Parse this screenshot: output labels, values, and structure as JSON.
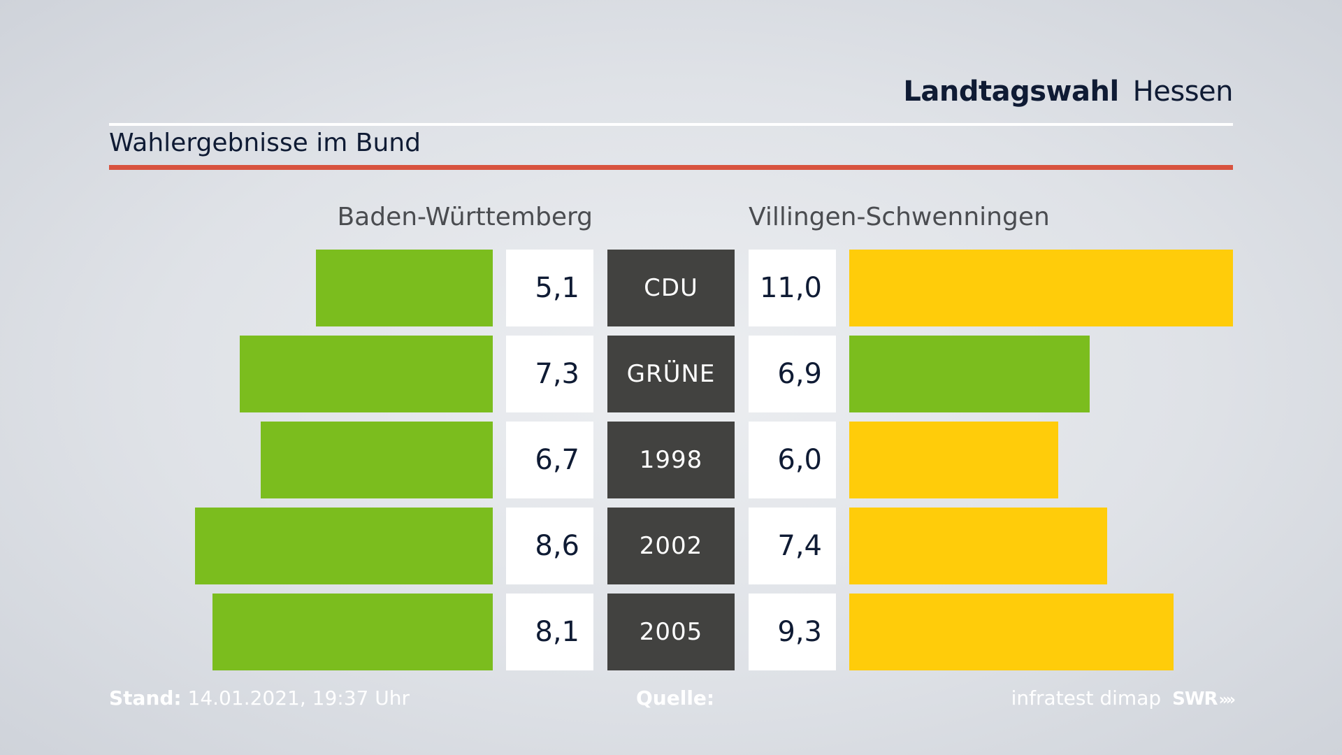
{
  "header": {
    "brand": "Landtagswahl",
    "region": "Hessen",
    "subtitle": "Wahlergebnisse im Bund"
  },
  "colors": {
    "left_bar": "#7bbd1e",
    "right_bar_default": "#ffcc0a",
    "right_bar_highlight": "#7bbd1e",
    "category_box": "#424240",
    "accent_rule": "#d8533f"
  },
  "chart_data": {
    "type": "bar",
    "left_label": "Baden-Württemberg",
    "right_label": "Villingen-Schwenningen",
    "categories": [
      "CDU",
      "GRÜNE",
      "1998",
      "2002",
      "2005"
    ],
    "series": [
      {
        "name": "Baden-Württemberg",
        "values": [
          5.1,
          7.3,
          6.7,
          8.6,
          8.1
        ],
        "labels": [
          "5,1",
          "7,3",
          "6,7",
          "8,6",
          "8,1"
        ]
      },
      {
        "name": "Villingen-Schwenningen",
        "values": [
          11.0,
          6.9,
          6.0,
          7.4,
          9.3
        ],
        "labels": [
          "11,0",
          "6,9",
          "6,0",
          "7,4",
          "9,3"
        ]
      }
    ],
    "right_bar_colors": [
      "#ffcc0a",
      "#7bbd1e",
      "#ffcc0a",
      "#ffcc0a",
      "#ffcc0a"
    ],
    "xlim": [
      0,
      11.0
    ]
  },
  "footer": {
    "stand_label": "Stand:",
    "stand_value": "14.01.2021, 19:37 Uhr",
    "quelle_label": "Quelle:",
    "source": "infratest dimap",
    "broadcaster": "SWR"
  }
}
